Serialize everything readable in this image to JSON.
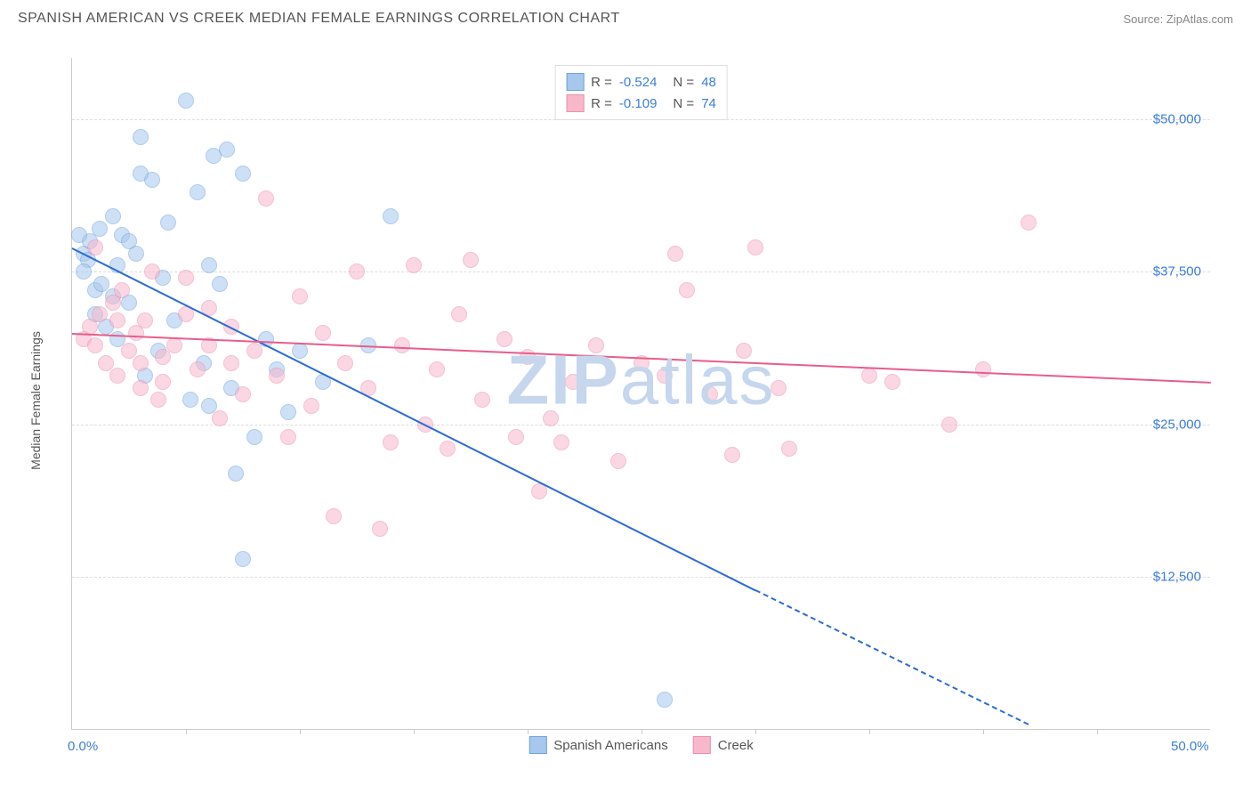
{
  "header": {
    "title": "SPANISH AMERICAN VS CREEK MEDIAN FEMALE EARNINGS CORRELATION CHART",
    "source": "Source: ZipAtlas.com"
  },
  "chart": {
    "type": "scatter",
    "ylabel": "Median Female Earnings",
    "xlim": [
      0,
      50
    ],
    "ylim": [
      0,
      55000
    ],
    "xtick_labels": {
      "0": "0.0%",
      "50": "50.0%"
    },
    "xtick_positions": [
      5,
      10,
      15,
      20,
      25,
      30,
      35,
      40,
      45
    ],
    "ytick_labels": {
      "12500": "$12,500",
      "25000": "$25,000",
      "37500": "$37,500",
      "50000": "$50,000"
    },
    "background_color": "#ffffff",
    "grid_color": "#dddddd",
    "axis_color": "#cccccc",
    "tick_label_color": "#3b7dd8",
    "axis_label_color": "#555555",
    "point_radius": 9,
    "point_opacity": 0.55,
    "watermark": "ZIPatlas",
    "watermark_color": "#c5d6ed",
    "series": [
      {
        "name": "Spanish Americans",
        "fill_color": "#a7c7ed",
        "stroke_color": "#6fa3dd",
        "line_color": "#2b6cd4",
        "R": "-0.524",
        "N": "48",
        "trend": {
          "x1": 0,
          "y1": 39500,
          "x2": 30,
          "y2": 11500,
          "x2_dash": 42,
          "y2_dash": 500
        },
        "points": [
          [
            0.5,
            39000
          ],
          [
            0.7,
            38500
          ],
          [
            0.8,
            40000
          ],
          [
            1.0,
            36000
          ],
          [
            1.2,
            41000
          ],
          [
            1.5,
            33000
          ],
          [
            1.8,
            42000
          ],
          [
            2.0,
            32000
          ],
          [
            2.2,
            40500
          ],
          [
            2.5,
            35000
          ],
          [
            2.8,
            39000
          ],
          [
            3.0,
            48500
          ],
          [
            3.2,
            29000
          ],
          [
            3.5,
            45000
          ],
          [
            3.8,
            31000
          ],
          [
            4.0,
            37000
          ],
          [
            4.5,
            33500
          ],
          [
            5.0,
            51500
          ],
          [
            5.2,
            27000
          ],
          [
            5.5,
            44000
          ],
          [
            5.8,
            30000
          ],
          [
            6.0,
            38000
          ],
          [
            6.2,
            47000
          ],
          [
            6.5,
            36500
          ],
          [
            7.0,
            28000
          ],
          [
            7.2,
            21000
          ],
          [
            7.5,
            14000
          ],
          [
            8.0,
            24000
          ],
          [
            8.5,
            32000
          ],
          [
            9.0,
            29500
          ],
          [
            9.5,
            26000
          ],
          [
            10.0,
            31000
          ],
          [
            11.0,
            28500
          ],
          [
            13.0,
            31500
          ],
          [
            14.0,
            42000
          ],
          [
            3.0,
            45500
          ],
          [
            4.2,
            41500
          ],
          [
            1.0,
            34000
          ],
          [
            1.3,
            36500
          ],
          [
            2.0,
            38000
          ],
          [
            0.3,
            40500
          ],
          [
            0.5,
            37500
          ],
          [
            1.8,
            35500
          ],
          [
            2.5,
            40000
          ],
          [
            6.8,
            47500
          ],
          [
            7.5,
            45500
          ],
          [
            26.0,
            2500
          ],
          [
            6.0,
            26500
          ]
        ]
      },
      {
        "name": "Creek",
        "fill_color": "#f7b8cb",
        "stroke_color": "#eb8fb0",
        "line_color": "#e85d8a",
        "R": "-0.109",
        "N": "74",
        "trend": {
          "x1": 0,
          "y1": 32500,
          "x2": 50,
          "y2": 28500
        },
        "points": [
          [
            0.5,
            32000
          ],
          [
            0.8,
            33000
          ],
          [
            1.0,
            31500
          ],
          [
            1.2,
            34000
          ],
          [
            1.5,
            30000
          ],
          [
            1.8,
            35000
          ],
          [
            2.0,
            29000
          ],
          [
            2.2,
            36000
          ],
          [
            2.5,
            31000
          ],
          [
            2.8,
            32500
          ],
          [
            3.0,
            28000
          ],
          [
            3.2,
            33500
          ],
          [
            3.5,
            37500
          ],
          [
            3.8,
            27000
          ],
          [
            4.0,
            30500
          ],
          [
            4.5,
            31500
          ],
          [
            5.0,
            37000
          ],
          [
            5.5,
            29500
          ],
          [
            6.0,
            34500
          ],
          [
            6.5,
            25500
          ],
          [
            7.0,
            33000
          ],
          [
            7.5,
            27500
          ],
          [
            8.0,
            31000
          ],
          [
            8.5,
            43500
          ],
          [
            9.0,
            29000
          ],
          [
            9.5,
            24000
          ],
          [
            10.0,
            35500
          ],
          [
            10.5,
            26500
          ],
          [
            11.0,
            32500
          ],
          [
            11.5,
            17500
          ],
          [
            12.0,
            30000
          ],
          [
            12.5,
            37500
          ],
          [
            13.0,
            28000
          ],
          [
            13.5,
            16500
          ],
          [
            14.0,
            23500
          ],
          [
            14.5,
            31500
          ],
          [
            15.0,
            38000
          ],
          [
            15.5,
            25000
          ],
          [
            16.0,
            29500
          ],
          [
            16.5,
            23000
          ],
          [
            17.0,
            34000
          ],
          [
            17.5,
            38500
          ],
          [
            18.0,
            27000
          ],
          [
            19.0,
            32000
          ],
          [
            19.5,
            24000
          ],
          [
            20.0,
            30500
          ],
          [
            20.5,
            19500
          ],
          [
            21.0,
            25500
          ],
          [
            21.5,
            23500
          ],
          [
            22.0,
            28500
          ],
          [
            23.0,
            31500
          ],
          [
            24.0,
            22000
          ],
          [
            25.0,
            30000
          ],
          [
            26.0,
            29000
          ],
          [
            26.5,
            39000
          ],
          [
            27.0,
            36000
          ],
          [
            28.0,
            27500
          ],
          [
            29.0,
            22500
          ],
          [
            29.5,
            31000
          ],
          [
            30.0,
            39500
          ],
          [
            31.0,
            28000
          ],
          [
            31.5,
            23000
          ],
          [
            35.0,
            29000
          ],
          [
            36.0,
            28500
          ],
          [
            38.5,
            25000
          ],
          [
            40.0,
            29500
          ],
          [
            42.0,
            41500
          ],
          [
            1.0,
            39500
          ],
          [
            2.0,
            33500
          ],
          [
            3.0,
            30000
          ],
          [
            4.0,
            28500
          ],
          [
            5.0,
            34000
          ],
          [
            6.0,
            31500
          ],
          [
            7.0,
            30000
          ]
        ]
      }
    ],
    "legend_bottom": [
      {
        "label": "Spanish Americans",
        "fill": "#a7c7ed",
        "stroke": "#6fa3dd"
      },
      {
        "label": "Creek",
        "fill": "#f7b8cb",
        "stroke": "#eb8fb0"
      }
    ]
  }
}
